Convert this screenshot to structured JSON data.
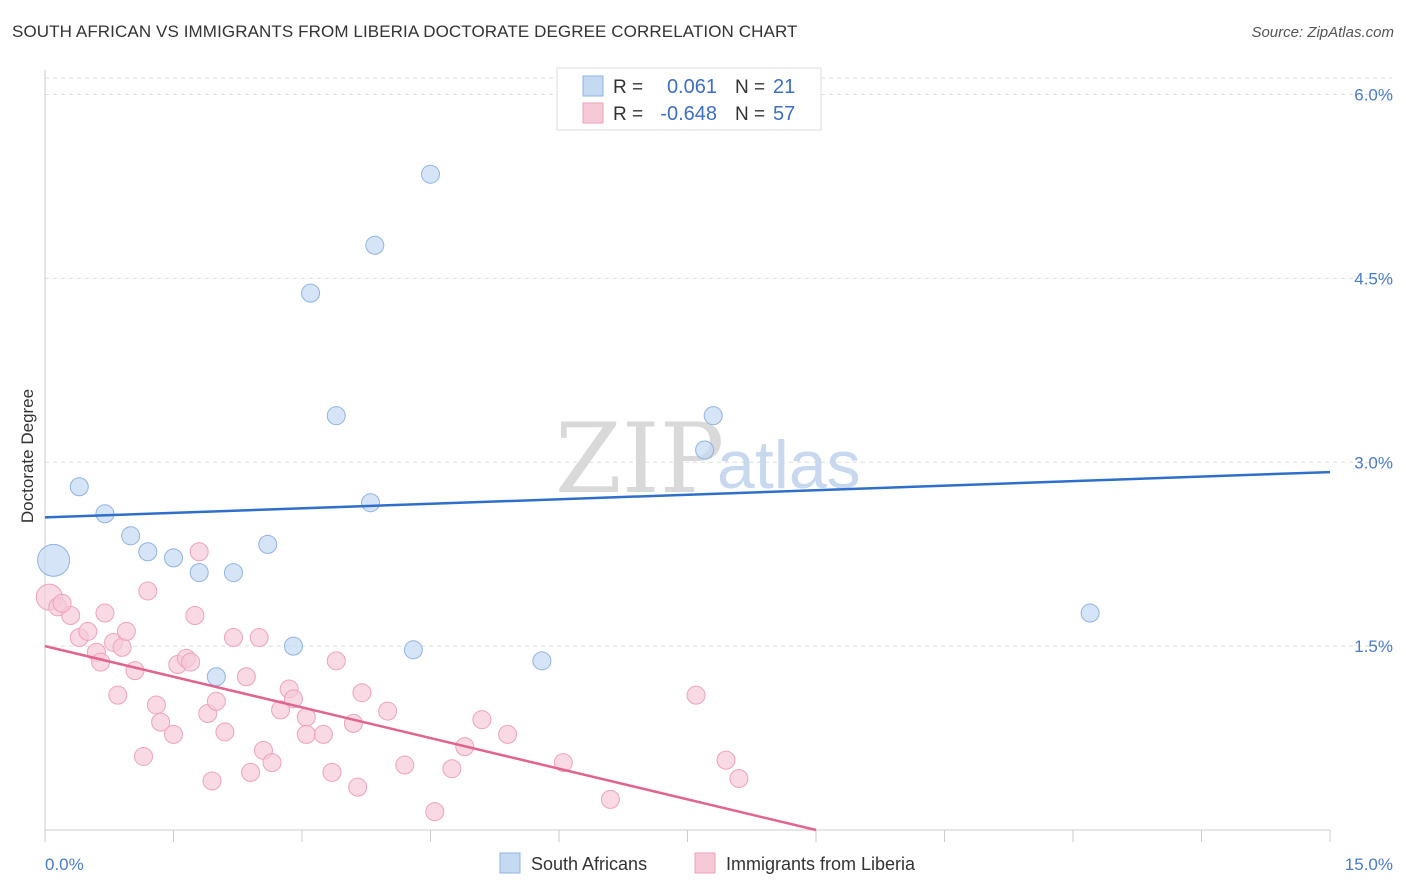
{
  "title": "SOUTH AFRICAN VS IMMIGRANTS FROM LIBERIA DOCTORATE DEGREE CORRELATION CHART",
  "source": "Source: ZipAtlas.com",
  "watermark": {
    "zip": "ZIP",
    "atlas": "atlas"
  },
  "legend": {
    "rows": [
      {
        "r_label": "R =",
        "r_value": "0.061",
        "n_label": "N =",
        "n_value": "21"
      },
      {
        "r_label": "R =",
        "r_value": "-0.648",
        "n_label": "N =",
        "n_value": "57"
      }
    ]
  },
  "bottom_legend": [
    "South Africans",
    "Immigrants from Liberia"
  ],
  "colors": {
    "blue_fill": "#c5d9f3",
    "blue_stroke": "#8fb3e3",
    "blue_line": "#2f6fca",
    "pink_fill": "#f7c9d7",
    "pink_stroke": "#eea3bb",
    "pink_line": "#e0648f"
  },
  "chart_data": {
    "type": "scatter",
    "ylabel": "Doctorate Degree",
    "xlim": [
      0,
      15
    ],
    "ylim": [
      0,
      6.2
    ],
    "x_tick_labels": [
      {
        "value": 0,
        "label": "0.0%"
      },
      {
        "value": 15,
        "label": "15.0%"
      }
    ],
    "y_ticks": [
      {
        "value": 1.5,
        "label": "1.5%"
      },
      {
        "value": 3.0,
        "label": "3.0%"
      },
      {
        "value": 4.5,
        "label": "4.5%"
      },
      {
        "value": 6.0,
        "label": "6.0%"
      }
    ],
    "series": [
      {
        "name": "South Africans",
        "points": [
          [
            0.1,
            2.2,
            16
          ],
          [
            0.4,
            2.8,
            9
          ],
          [
            0.7,
            2.58,
            9
          ],
          [
            1.0,
            2.4,
            9
          ],
          [
            1.2,
            2.27,
            9
          ],
          [
            1.5,
            2.22,
            9
          ],
          [
            1.8,
            2.1,
            9
          ],
          [
            2.2,
            2.1,
            9
          ],
          [
            2.6,
            2.33,
            9
          ],
          [
            2.9,
            1.5,
            9
          ],
          [
            2.0,
            1.25,
            9
          ],
          [
            3.1,
            4.38,
            9
          ],
          [
            3.4,
            3.38,
            9
          ],
          [
            3.8,
            2.67,
            9
          ],
          [
            3.85,
            4.77,
            9
          ],
          [
            4.3,
            1.47,
            9
          ],
          [
            4.5,
            5.35,
            9
          ],
          [
            5.8,
            1.38,
            9
          ],
          [
            7.7,
            3.1,
            9
          ],
          [
            7.8,
            3.38,
            9
          ],
          [
            12.2,
            1.77,
            9
          ]
        ],
        "trend": [
          [
            0,
            2.55
          ],
          [
            15,
            2.92
          ]
        ]
      },
      {
        "name": "Immigrants from Liberia",
        "points": [
          [
            0.05,
            1.9,
            13
          ],
          [
            0.15,
            1.82,
            9
          ],
          [
            0.3,
            1.75,
            9
          ],
          [
            0.2,
            1.85,
            9
          ],
          [
            0.4,
            1.57,
            9
          ],
          [
            0.5,
            1.62,
            9
          ],
          [
            0.6,
            1.45,
            9
          ],
          [
            0.65,
            1.37,
            9
          ],
          [
            0.7,
            1.77,
            9
          ],
          [
            0.8,
            1.53,
            9
          ],
          [
            0.9,
            1.49,
            9
          ],
          [
            0.95,
            1.62,
            9
          ],
          [
            1.05,
            1.3,
            9
          ],
          [
            0.85,
            1.1,
            9
          ],
          [
            1.2,
            1.95,
            9
          ],
          [
            1.3,
            1.02,
            9
          ],
          [
            1.35,
            0.88,
            9
          ],
          [
            1.5,
            0.78,
            9
          ],
          [
            1.15,
            0.6,
            9
          ],
          [
            1.55,
            1.35,
            9
          ],
          [
            1.65,
            1.4,
            9
          ],
          [
            1.7,
            1.37,
            9
          ],
          [
            1.75,
            1.75,
            9
          ],
          [
            1.8,
            2.27,
            9
          ],
          [
            1.9,
            0.95,
            9
          ],
          [
            2.0,
            1.05,
            9
          ],
          [
            2.1,
            0.8,
            9
          ],
          [
            2.2,
            1.57,
            9
          ],
          [
            2.35,
            1.25,
            9
          ],
          [
            2.4,
            0.47,
            9
          ],
          [
            1.95,
            0.4,
            9
          ],
          [
            2.5,
            1.57,
            9
          ],
          [
            2.55,
            0.65,
            9
          ],
          [
            2.65,
            0.55,
            9
          ],
          [
            2.75,
            0.98,
            9
          ],
          [
            2.85,
            1.15,
            9
          ],
          [
            2.9,
            1.07,
            9
          ],
          [
            3.05,
            0.92,
            9
          ],
          [
            3.05,
            0.78,
            9
          ],
          [
            3.25,
            0.78,
            9
          ],
          [
            3.35,
            0.47,
            9
          ],
          [
            3.4,
            1.38,
            9
          ],
          [
            3.65,
            0.35,
            9
          ],
          [
            3.6,
            0.87,
            9
          ],
          [
            3.7,
            1.12,
            9
          ],
          [
            4.0,
            0.97,
            9
          ],
          [
            4.2,
            0.53,
            9
          ],
          [
            4.55,
            0.15,
            9
          ],
          [
            4.75,
            0.5,
            9
          ],
          [
            4.9,
            0.68,
            9
          ],
          [
            5.1,
            0.9,
            9
          ],
          [
            5.4,
            0.78,
            9
          ],
          [
            6.05,
            0.55,
            9
          ],
          [
            6.6,
            0.25,
            9
          ],
          [
            7.6,
            1.1,
            9
          ],
          [
            7.95,
            0.57,
            9
          ],
          [
            8.1,
            0.42,
            9
          ]
        ],
        "trend": [
          [
            0,
            1.5
          ],
          [
            9.0,
            0.0
          ]
        ]
      }
    ]
  }
}
